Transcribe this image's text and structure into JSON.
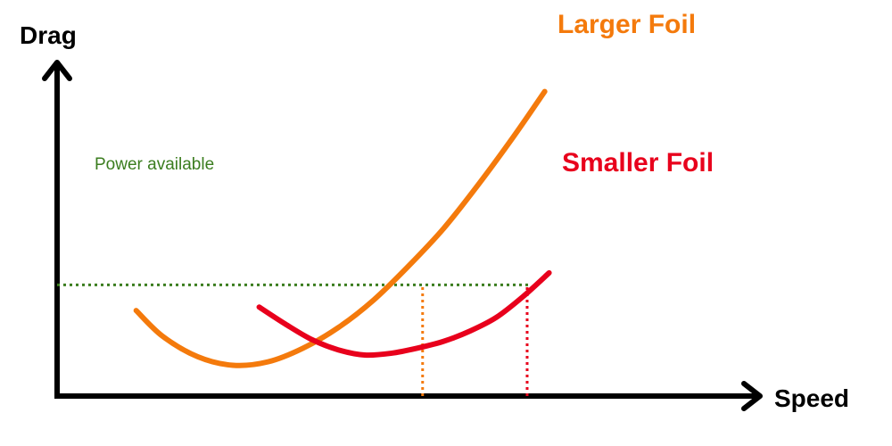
{
  "chart_data": {
    "type": "line",
    "title": "",
    "xlabel": "Speed",
    "ylabel": "Drag",
    "grid": false,
    "legend": "inline-at-curve-ends",
    "series": [
      {
        "name": "Larger Foil",
        "color": "#f47a0c",
        "points": [
          [
            0.15,
            0.5
          ],
          [
            0.18,
            0.35
          ],
          [
            0.22,
            0.23
          ],
          [
            0.26,
            0.18
          ],
          [
            0.3,
            0.2
          ],
          [
            0.34,
            0.28
          ],
          [
            0.38,
            0.4
          ],
          [
            0.42,
            0.56
          ],
          [
            0.46,
            0.76
          ],
          [
            0.5,
            0.98
          ],
          [
            0.54,
            1.24
          ],
          [
            0.58,
            1.52
          ],
          [
            0.615,
            1.78
          ]
        ]
      },
      {
        "name": "Smaller Foil",
        "color": "#e8001c",
        "points": [
          [
            0.29,
            0.52
          ],
          [
            0.32,
            0.42
          ],
          [
            0.35,
            0.33
          ],
          [
            0.38,
            0.27
          ],
          [
            0.41,
            0.24
          ],
          [
            0.44,
            0.25
          ],
          [
            0.47,
            0.28
          ],
          [
            0.5,
            0.32
          ],
          [
            0.53,
            0.38
          ],
          [
            0.56,
            0.46
          ],
          [
            0.59,
            0.58
          ],
          [
            0.62,
            0.72
          ]
        ]
      }
    ],
    "annotations": [
      {
        "text": "Power available",
        "type": "hline",
        "y": 0.65,
        "x_range": [
          0.06,
          0.6
        ],
        "color": "#3b7d1f"
      },
      {
        "text": "",
        "type": "vline",
        "x": 0.476,
        "y_range": [
          0,
          0.65
        ],
        "color": "#f47a0c"
      },
      {
        "text": "",
        "type": "vline",
        "x": 0.595,
        "y_range": [
          0,
          0.65
        ],
        "color": "#e8001c"
      }
    ],
    "xlim": [
      0.06,
      0.86
    ],
    "ylim": [
      0,
      1.95
    ],
    "axis_color": "#000000"
  }
}
